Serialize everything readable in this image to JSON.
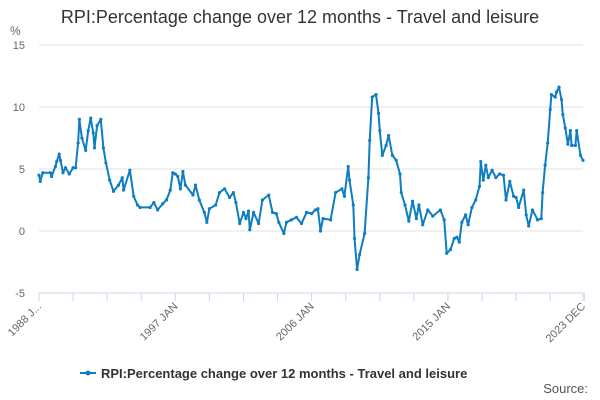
{
  "chart_data": {
    "type": "line",
    "title": "RPI:Percentage change over 12 months - Travel and leisure",
    "ylabel": "%",
    "ylim": [
      -5,
      15
    ],
    "yticks": [
      -5,
      0,
      5,
      10,
      15
    ],
    "xlim": [
      "1988-01",
      "2023-12"
    ],
    "xtick_labels": [
      {
        "date": "1988-01",
        "label": "1988 J..."
      },
      {
        "date": "1997-01",
        "label": "1997 JAN"
      },
      {
        "date": "2006-01",
        "label": "2006 JAN"
      },
      {
        "date": "2015-01",
        "label": "2015 JAN"
      },
      {
        "date": "2023-12",
        "label": "2023 DEC"
      }
    ],
    "grid": true,
    "legend_position": "bottom",
    "series": [
      {
        "name": "RPI:Percentage change over 12 months - Travel and leisure",
        "color": "#0F7DC2",
        "points": [
          [
            "1988-01",
            4.5
          ],
          [
            "1988-02",
            4.0
          ],
          [
            "1988-04",
            4.7
          ],
          [
            "1988-10",
            4.7
          ],
          [
            "1988-11",
            4.4
          ],
          [
            "1989-02",
            5.2
          ],
          [
            "1989-03",
            5.6
          ],
          [
            "1989-05",
            6.2
          ],
          [
            "1989-06",
            5.7
          ],
          [
            "1989-08",
            4.7
          ],
          [
            "1989-10",
            5.1
          ],
          [
            "1990-01",
            4.6
          ],
          [
            "1990-04",
            5.1
          ],
          [
            "1990-06",
            5.1
          ],
          [
            "1990-08",
            7.1
          ],
          [
            "1990-09",
            9.0
          ],
          [
            "1990-11",
            7.5
          ],
          [
            "1991-02",
            6.5
          ],
          [
            "1991-04",
            8.1
          ],
          [
            "1991-06",
            9.1
          ],
          [
            "1991-08",
            7.9
          ],
          [
            "1991-09",
            6.7
          ],
          [
            "1991-11",
            8.5
          ],
          [
            "1992-02",
            9.0
          ],
          [
            "1992-04",
            6.7
          ],
          [
            "1992-06",
            5.5
          ],
          [
            "1992-09",
            4.1
          ],
          [
            "1992-12",
            3.2
          ],
          [
            "1993-04",
            3.7
          ],
          [
            "1993-07",
            4.3
          ],
          [
            "1993-08",
            3.3
          ],
          [
            "1994-01",
            4.9
          ],
          [
            "1994-04",
            2.8
          ],
          [
            "1994-07",
            2.1
          ],
          [
            "1994-09",
            1.9
          ],
          [
            "1995-05",
            1.9
          ],
          [
            "1995-08",
            2.3
          ],
          [
            "1995-11",
            1.7
          ],
          [
            "1996-03",
            2.2
          ],
          [
            "1996-06",
            2.5
          ],
          [
            "1996-09",
            3.3
          ],
          [
            "1996-11",
            4.7
          ],
          [
            "1997-01",
            4.6
          ],
          [
            "1997-03",
            4.4
          ],
          [
            "1997-05",
            3.4
          ],
          [
            "1997-07",
            4.8
          ],
          [
            "1997-09",
            3.7
          ],
          [
            "1998-03",
            2.9
          ],
          [
            "1998-05",
            3.7
          ],
          [
            "1998-08",
            2.5
          ],
          [
            "1998-12",
            1.5
          ],
          [
            "1999-02",
            0.7
          ],
          [
            "1999-04",
            1.8
          ],
          [
            "1999-09",
            2.1
          ],
          [
            "1999-12",
            3.1
          ],
          [
            "2000-04",
            3.4
          ],
          [
            "2000-08",
            2.7
          ],
          [
            "2000-11",
            3.1
          ],
          [
            "2001-01",
            2.3
          ],
          [
            "2001-04",
            0.6
          ],
          [
            "2001-07",
            1.5
          ],
          [
            "2001-09",
            1.0
          ],
          [
            "2001-11",
            1.6
          ],
          [
            "2001-12",
            0.1
          ],
          [
            "2002-03",
            1.5
          ],
          [
            "2002-07",
            0.6
          ],
          [
            "2002-10",
            2.5
          ],
          [
            "2003-03",
            2.9
          ],
          [
            "2003-06",
            1.5
          ],
          [
            "2003-09",
            1.4
          ],
          [
            "2003-11",
            0.7
          ],
          [
            "2004-03",
            -0.2
          ],
          [
            "2004-05",
            0.7
          ],
          [
            "2004-09",
            0.9
          ],
          [
            "2005-01",
            1.1
          ],
          [
            "2005-05",
            0.6
          ],
          [
            "2005-09",
            1.5
          ],
          [
            "2006-01",
            1.4
          ],
          [
            "2006-04",
            1.7
          ],
          [
            "2006-06",
            1.8
          ],
          [
            "2006-08",
            0.0
          ],
          [
            "2006-10",
            1.0
          ],
          [
            "2007-04",
            0.9
          ],
          [
            "2007-08",
            3.1
          ],
          [
            "2008-01",
            3.4
          ],
          [
            "2008-03",
            2.8
          ],
          [
            "2008-06",
            5.2
          ],
          [
            "2008-07",
            4.1
          ],
          [
            "2008-10",
            2.1
          ],
          [
            "2008-11",
            -0.6
          ],
          [
            "2009-01",
            -3.1
          ],
          [
            "2009-03",
            -1.9
          ],
          [
            "2009-07",
            -0.2
          ],
          [
            "2009-10",
            4.3
          ],
          [
            "2009-11",
            7.3
          ],
          [
            "2010-01",
            10.8
          ],
          [
            "2010-04",
            11.0
          ],
          [
            "2010-06",
            9.5
          ],
          [
            "2010-07",
            8.1
          ],
          [
            "2010-09",
            6.1
          ],
          [
            "2010-12",
            6.9
          ],
          [
            "2011-02",
            7.7
          ],
          [
            "2011-05",
            6.1
          ],
          [
            "2011-08",
            5.7
          ],
          [
            "2011-11",
            4.6
          ],
          [
            "2011-12",
            3.1
          ],
          [
            "2012-03",
            2.1
          ],
          [
            "2012-06",
            0.8
          ],
          [
            "2012-09",
            2.4
          ],
          [
            "2012-12",
            1.0
          ],
          [
            "2013-02",
            2.1
          ],
          [
            "2013-05",
            0.5
          ],
          [
            "2013-09",
            1.7
          ],
          [
            "2014-01",
            1.2
          ],
          [
            "2014-07",
            1.7
          ],
          [
            "2014-10",
            0.9
          ],
          [
            "2014-12",
            -1.8
          ],
          [
            "2015-03",
            -1.5
          ],
          [
            "2015-06",
            -0.6
          ],
          [
            "2015-08",
            -0.5
          ],
          [
            "2015-10",
            -0.9
          ],
          [
            "2015-12",
            0.7
          ],
          [
            "2016-03",
            1.3
          ],
          [
            "2016-05",
            0.5
          ],
          [
            "2016-08",
            1.9
          ],
          [
            "2016-11",
            2.5
          ],
          [
            "2017-02",
            3.6
          ],
          [
            "2017-03",
            5.6
          ],
          [
            "2017-05",
            4.1
          ],
          [
            "2017-07",
            5.3
          ],
          [
            "2017-09",
            4.3
          ],
          [
            "2017-12",
            4.9
          ],
          [
            "2018-03",
            4.3
          ],
          [
            "2018-06",
            4.6
          ],
          [
            "2018-09",
            4.5
          ],
          [
            "2018-11",
            2.5
          ],
          [
            "2019-02",
            4.0
          ],
          [
            "2019-05",
            2.8
          ],
          [
            "2019-07",
            2.7
          ],
          [
            "2019-09",
            1.9
          ],
          [
            "2020-01",
            3.3
          ],
          [
            "2020-03",
            1.3
          ],
          [
            "2020-05",
            0.4
          ],
          [
            "2020-08",
            1.7
          ],
          [
            "2020-12",
            0.9
          ],
          [
            "2021-03",
            1.0
          ],
          [
            "2021-04",
            3.1
          ],
          [
            "2021-06",
            5.3
          ],
          [
            "2021-08",
            7.1
          ],
          [
            "2021-10",
            9.8
          ],
          [
            "2021-11",
            11.0
          ],
          [
            "2022-02",
            10.8
          ],
          [
            "2022-03",
            11.2
          ],
          [
            "2022-05",
            11.6
          ],
          [
            "2022-07",
            10.6
          ],
          [
            "2022-08",
            9.4
          ],
          [
            "2022-10",
            8.3
          ],
          [
            "2022-12",
            7.0
          ],
          [
            "2023-02",
            8.1
          ],
          [
            "2023-03",
            6.9
          ],
          [
            "2023-06",
            6.9
          ],
          [
            "2023-07",
            8.1
          ],
          [
            "2023-10",
            6.1
          ],
          [
            "2023-12",
            5.7
          ]
        ]
      }
    ]
  },
  "source_label": "Source:"
}
